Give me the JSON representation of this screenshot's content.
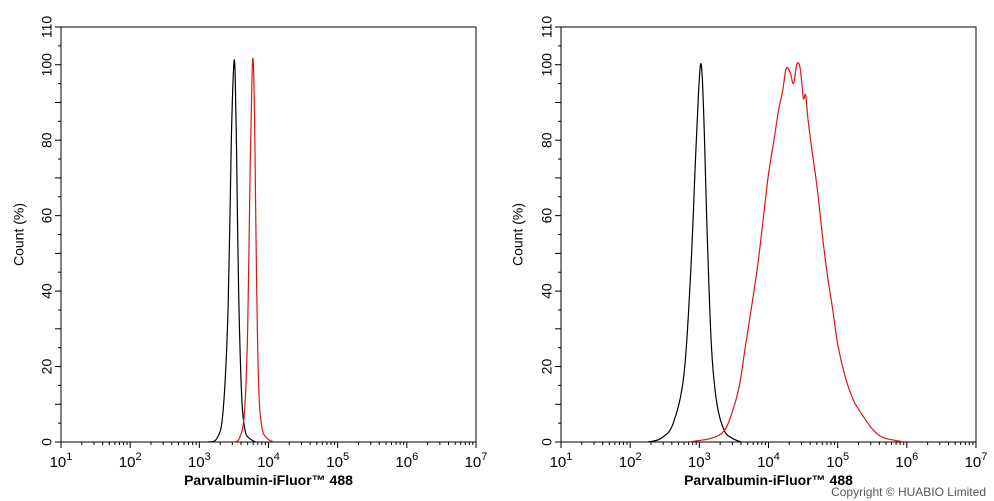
{
  "copyright": "Copyright © HUABIO Limited",
  "colors": {
    "control": "#000000",
    "sample": "#d81818",
    "axis": "#000000"
  },
  "chart_data": [
    {
      "type": "line",
      "title": "",
      "xlabel": "Parvalbumin-iFluor™ 488",
      "ylabel": "Count  (%)",
      "xscale": "log",
      "xlim": [
        10,
        10000000
      ],
      "ylim": [
        0,
        110
      ],
      "yticks": [
        0,
        20,
        40,
        60,
        80,
        100,
        110
      ],
      "xticks": [
        {
          "base": "10",
          "exp": "1"
        },
        {
          "base": "10",
          "exp": "2"
        },
        {
          "base": "10",
          "exp": "3"
        },
        {
          "base": "10",
          "exp": "4"
        },
        {
          "base": "10",
          "exp": "5"
        },
        {
          "base": "10",
          "exp": "6"
        },
        {
          "base": "10",
          "exp": "7"
        }
      ],
      "grid": false,
      "series": [
        {
          "role": "control",
          "color": "#000000",
          "x": [
            1300,
            1800,
            2200,
            2600,
            2900,
            3150,
            3300,
            3450,
            3700,
            4100,
            4600,
            5300,
            6500
          ],
          "y": [
            0,
            1,
            8,
            35,
            80,
            100,
            97,
            78,
            40,
            12,
            3,
            1,
            0
          ]
        },
        {
          "role": "sample",
          "color": "#d81818",
          "x": [
            3000,
            3800,
            4500,
            5000,
            5400,
            5800,
            6050,
            6300,
            6700,
            7200,
            8000,
            9500,
            12000
          ],
          "y": [
            0,
            1,
            8,
            30,
            70,
            98,
            100,
            85,
            45,
            15,
            4,
            1,
            0
          ]
        }
      ]
    },
    {
      "type": "line",
      "title": "",
      "xlabel": "Parvalbumin-iFluor™ 488",
      "ylabel": "Count  (%)",
      "xscale": "log",
      "xlim": [
        10,
        10000000
      ],
      "ylim": [
        0,
        110
      ],
      "yticks": [
        0,
        20,
        40,
        60,
        80,
        100,
        110
      ],
      "xticks": [
        {
          "base": "10",
          "exp": "1"
        },
        {
          "base": "10",
          "exp": "2"
        },
        {
          "base": "10",
          "exp": "3"
        },
        {
          "base": "10",
          "exp": "4"
        },
        {
          "base": "10",
          "exp": "5"
        },
        {
          "base": "10",
          "exp": "6"
        },
        {
          "base": "10",
          "exp": "7"
        }
      ],
      "grid": false,
      "series": [
        {
          "role": "control",
          "color": "#000000",
          "x": [
            180,
            280,
            420,
            600,
            750,
            880,
            970,
            1040,
            1100,
            1180,
            1300,
            1500,
            1800,
            2300,
            3000,
            4000
          ],
          "y": [
            0,
            1,
            5,
            18,
            45,
            75,
            92,
            100,
            97,
            82,
            55,
            25,
            10,
            3,
            1,
            0
          ]
        },
        {
          "role": "sample",
          "color": "#d81818",
          "x": [
            700,
            1500,
            2300,
            3000,
            3800,
            4600,
            5600,
            7000,
            8500,
            10000,
            12000,
            14000,
            16000,
            18000,
            20500,
            23000,
            25500,
            28000,
            30000,
            32000,
            34500,
            37000,
            42000,
            50000,
            60000,
            70000,
            85000,
            100000,
            130000,
            170000,
            230000,
            300000,
            380000,
            480000,
            650000,
            900000
          ],
          "y": [
            0,
            1,
            3,
            8,
            15,
            25,
            35,
            47,
            60,
            71,
            80,
            88,
            93,
            99,
            98,
            95,
            100,
            100,
            96,
            91,
            92,
            86,
            78,
            68,
            55,
            45,
            35,
            26,
            17,
            11,
            7,
            4,
            2,
            1,
            0.5,
            0
          ]
        }
      ]
    }
  ]
}
